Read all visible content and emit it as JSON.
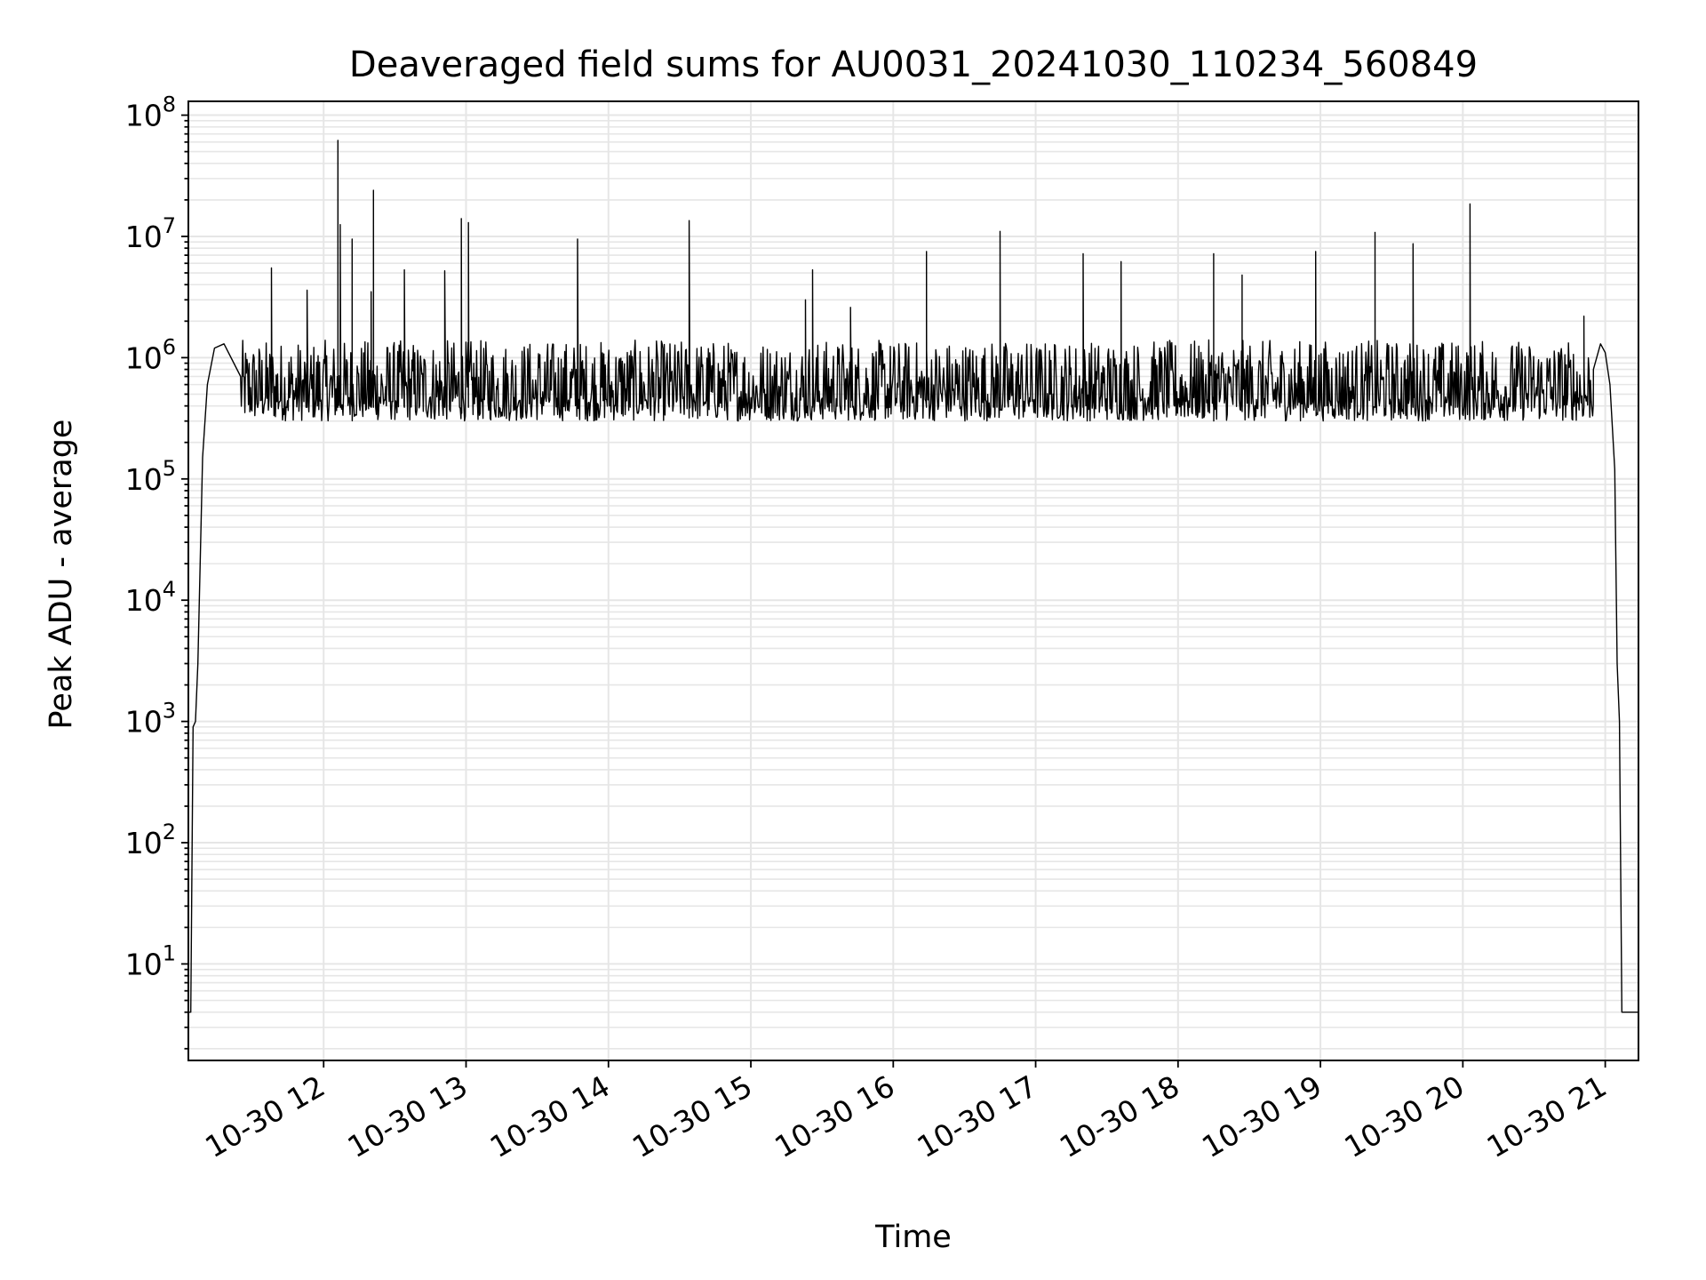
{
  "chart_data": {
    "type": "line",
    "title": "Deaveraged field sums for AU0031_20241030_110234_560849",
    "xlabel": "Time",
    "ylabel": "Peak ADU - average",
    "yscale": "log",
    "ylim": [
      1.6,
      130000000
    ],
    "xlim": [
      "2024-10-30 11:03",
      "2024-10-30 21:14"
    ],
    "grid": true,
    "line_color": "#000000",
    "grid_color": "#e6e6e6",
    "x_ticks": [
      {
        "t": "2024-10-30 12:00",
        "label": "10-30 12"
      },
      {
        "t": "2024-10-30 13:00",
        "label": "10-30 13"
      },
      {
        "t": "2024-10-30 14:00",
        "label": "10-30 14"
      },
      {
        "t": "2024-10-30 15:00",
        "label": "10-30 15"
      },
      {
        "t": "2024-10-30 16:00",
        "label": "10-30 16"
      },
      {
        "t": "2024-10-30 17:00",
        "label": "10-30 17"
      },
      {
        "t": "2024-10-30 18:00",
        "label": "10-30 18"
      },
      {
        "t": "2024-10-30 19:00",
        "label": "10-30 19"
      },
      {
        "t": "2024-10-30 20:00",
        "label": "10-30 20"
      },
      {
        "t": "2024-10-30 21:00",
        "label": "10-30 21"
      }
    ],
    "y_ticks": [
      {
        "v": 10,
        "base": "10",
        "exp": "1"
      },
      {
        "v": 100,
        "base": "10",
        "exp": "2"
      },
      {
        "v": 1000,
        "base": "10",
        "exp": "3"
      },
      {
        "v": 10000,
        "base": "10",
        "exp": "4"
      },
      {
        "v": 100000,
        "base": "10",
        "exp": "5"
      },
      {
        "v": 1000000,
        "base": "10",
        "exp": "6"
      },
      {
        "v": 10000000,
        "base": "10",
        "exp": "7"
      },
      {
        "v": 100000000,
        "base": "10",
        "exp": "8"
      }
    ],
    "baseline": {
      "points": [
        [
          "2024-10-30 11:03",
          4
        ],
        [
          "2024-10-30 11:04",
          4
        ],
        [
          "2024-10-30 11:05",
          900
        ],
        [
          "2024-10-30 11:06",
          1000
        ],
        [
          "2024-10-30 11:07",
          3000
        ],
        [
          "2024-10-30 11:09",
          150000
        ],
        [
          "2024-10-30 11:11",
          600000
        ],
        [
          "2024-10-30 11:14",
          1200000
        ],
        [
          "2024-10-30 11:18",
          1300000
        ],
        [
          "2024-10-30 11:25",
          700000
        ],
        [
          "2024-10-30 20:55",
          800000
        ],
        [
          "2024-10-30 20:58",
          1300000
        ],
        [
          "2024-10-30 21:00",
          1100000
        ],
        [
          "2024-10-30 21:02",
          600000
        ],
        [
          "2024-10-30 21:04",
          120000
        ],
        [
          "2024-10-30 21:05",
          3000
        ],
        [
          "2024-10-30 21:06",
          1000
        ],
        [
          "2024-10-30 21:07",
          4
        ],
        [
          "2024-10-30 21:14",
          4
        ]
      ]
    },
    "noise_band": {
      "start": "2024-10-30 11:25",
      "end": "2024-10-30 20:55",
      "low": 300000,
      "high": 1400000
    },
    "spikes": [
      [
        "2024-10-30 11:38",
        5500000
      ],
      [
        "2024-10-30 11:53",
        3600000
      ],
      [
        "2024-10-30 12:06",
        62000000
      ],
      [
        "2024-10-30 12:07",
        12500000
      ],
      [
        "2024-10-30 12:12",
        9500000
      ],
      [
        "2024-10-30 12:20",
        3500000
      ],
      [
        "2024-10-30 12:21",
        24000000
      ],
      [
        "2024-10-30 12:34",
        5300000
      ],
      [
        "2024-10-30 12:51",
        5200000
      ],
      [
        "2024-10-30 12:58",
        14000000
      ],
      [
        "2024-10-30 13:01",
        13000000
      ],
      [
        "2024-10-30 13:47",
        9500000
      ],
      [
        "2024-10-30 14:34",
        13500000
      ],
      [
        "2024-10-30 15:23",
        3000000
      ],
      [
        "2024-10-30 15:26",
        5300000
      ],
      [
        "2024-10-30 15:42",
        2600000
      ],
      [
        "2024-10-30 16:14",
        7500000
      ],
      [
        "2024-10-30 16:45",
        11000000
      ],
      [
        "2024-10-30 17:20",
        7200000
      ],
      [
        "2024-10-30 17:36",
        6200000
      ],
      [
        "2024-10-30 18:15",
        7200000
      ],
      [
        "2024-10-30 18:27",
        4800000
      ],
      [
        "2024-10-30 18:58",
        7500000
      ],
      [
        "2024-10-30 19:23",
        10800000
      ],
      [
        "2024-10-30 19:39",
        8700000
      ],
      [
        "2024-10-30 20:03",
        18500000
      ],
      [
        "2024-10-30 20:51",
        2200000
      ]
    ]
  }
}
